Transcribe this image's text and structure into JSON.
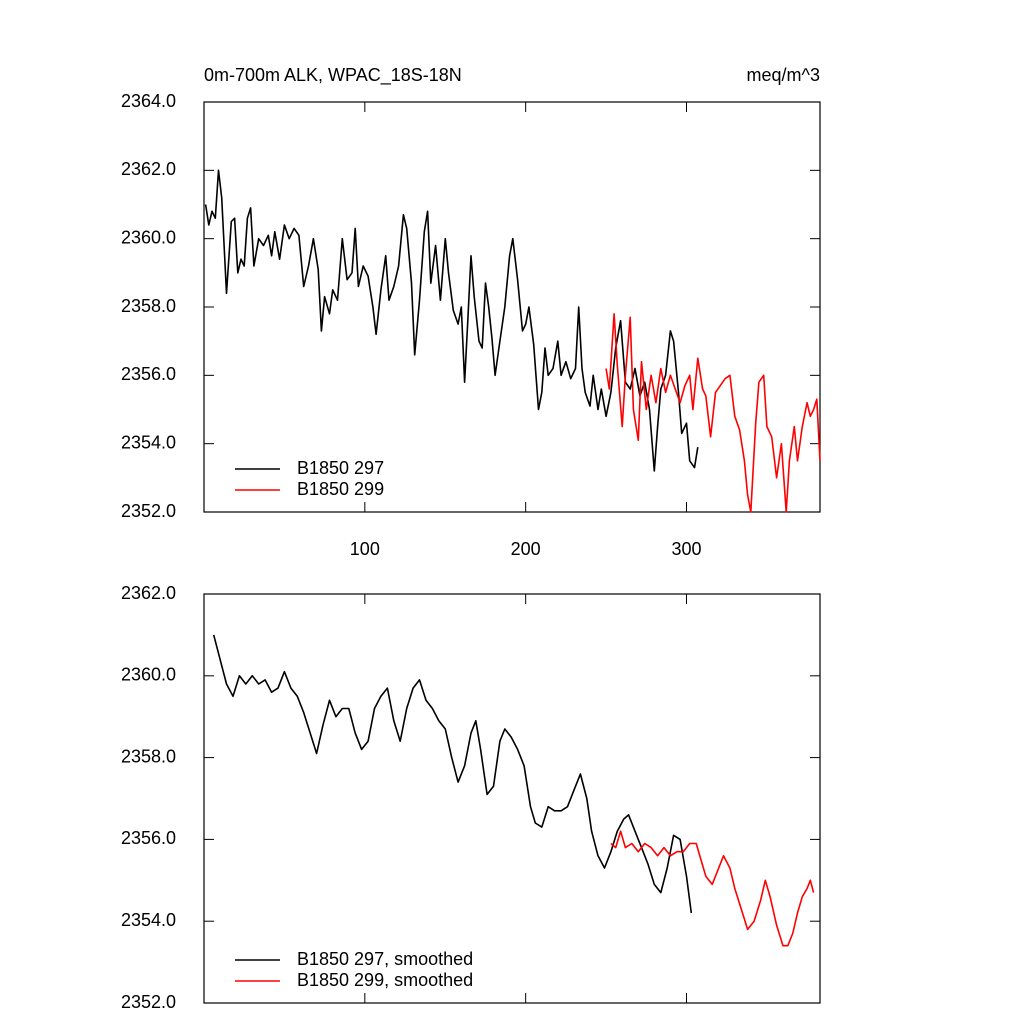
{
  "chart_data": [
    {
      "type": "line",
      "title": "0m-700m ALK, WPAC_18S-18N",
      "units": "meq/m^3",
      "xlim": [
        0,
        383
      ],
      "ylim": [
        2352,
        2364
      ],
      "xticks": [
        100,
        200,
        300
      ],
      "yticks": [
        {
          "value": 2352,
          "label": "2352.0"
        },
        {
          "value": 2354,
          "label": "2354.0"
        },
        {
          "value": 2356,
          "label": "2356.0"
        },
        {
          "value": 2358,
          "label": "2358.0"
        },
        {
          "value": 2360,
          "label": "2360.0"
        },
        {
          "value": 2362,
          "label": "2362.0"
        },
        {
          "value": 2364,
          "label": "2364.0"
        }
      ],
      "legend": "lower left",
      "series": [
        {
          "name": "B1850 297",
          "color": "#000000",
          "x": [
            1,
            3,
            5,
            7,
            9,
            11,
            14,
            17,
            19,
            21,
            23,
            25,
            27,
            29,
            31,
            34,
            37,
            40,
            42,
            44,
            47,
            50,
            53,
            56,
            59,
            62,
            65,
            68,
            71,
            73,
            75,
            78,
            80,
            83,
            86,
            89,
            92,
            94,
            96,
            99,
            102,
            105,
            107,
            110,
            113,
            115,
            118,
            121,
            124,
            126,
            129,
            131,
            134,
            137,
            139,
            141,
            144,
            147,
            150,
            152,
            155,
            158,
            160,
            162,
            164,
            166,
            168,
            171,
            173,
            175,
            177,
            179,
            181,
            184,
            187,
            190,
            192,
            195,
            198,
            200,
            202,
            205,
            208,
            210,
            212,
            214,
            217,
            220,
            222,
            225,
            228,
            231,
            233,
            235,
            237,
            240,
            242,
            245,
            247,
            250,
            253,
            256,
            259,
            262,
            265,
            268,
            271,
            274,
            277,
            280,
            282,
            284,
            287,
            290,
            292,
            295,
            297,
            300,
            302,
            305,
            307
          ],
          "values": [
            2361.0,
            2360.4,
            2360.8,
            2360.6,
            2362.0,
            2361.2,
            2358.4,
            2360.5,
            2360.6,
            2359.0,
            2359.4,
            2359.2,
            2360.6,
            2360.9,
            2359.2,
            2360.0,
            2359.8,
            2360.1,
            2359.5,
            2360.2,
            2359.4,
            2360.4,
            2360.0,
            2360.3,
            2360.1,
            2358.6,
            2359.2,
            2360.0,
            2359.1,
            2357.3,
            2358.3,
            2357.8,
            2358.5,
            2358.2,
            2360.0,
            2358.8,
            2359.0,
            2360.3,
            2358.6,
            2359.2,
            2358.9,
            2358.0,
            2357.2,
            2358.5,
            2359.5,
            2358.2,
            2358.6,
            2359.2,
            2360.7,
            2360.3,
            2358.7,
            2356.6,
            2358.2,
            2360.2,
            2360.8,
            2358.7,
            2359.8,
            2358.2,
            2360.0,
            2359.0,
            2357.9,
            2357.5,
            2358.0,
            2355.8,
            2357.6,
            2359.5,
            2358.3,
            2357.0,
            2356.8,
            2358.7,
            2358.0,
            2357.1,
            2356.0,
            2357.0,
            2358.0,
            2359.5,
            2360.0,
            2358.8,
            2357.3,
            2357.5,
            2358.0,
            2356.9,
            2355.0,
            2355.5,
            2356.8,
            2356.0,
            2356.2,
            2357.0,
            2356.0,
            2356.4,
            2355.9,
            2356.2,
            2358.0,
            2356.2,
            2355.5,
            2355.1,
            2356.0,
            2355.0,
            2355.6,
            2354.8,
            2355.5,
            2356.8,
            2357.6,
            2355.8,
            2355.6,
            2356.2,
            2355.4,
            2355.8,
            2355.0,
            2353.2,
            2354.5,
            2355.6,
            2356.0,
            2357.3,
            2357.0,
            2355.5,
            2354.3,
            2354.6,
            2353.5,
            2353.3,
            2353.9
          ]
        },
        {
          "name": "B1850 299",
          "color": "#ff0000",
          "x": [
            250,
            252,
            255,
            257,
            260,
            262,
            265,
            267,
            270,
            272,
            275,
            278,
            281,
            284,
            287,
            290,
            293,
            296,
            299,
            302,
            304,
            307,
            310,
            312,
            315,
            318,
            321,
            324,
            327,
            330,
            333,
            336,
            338,
            340,
            343,
            345,
            348,
            350,
            353,
            356,
            359,
            362,
            364,
            367,
            369,
            372,
            375,
            377,
            379,
            381,
            383
          ],
          "values": [
            2356.2,
            2355.6,
            2357.8,
            2356.3,
            2354.5,
            2356.0,
            2357.7,
            2355.0,
            2354.1,
            2356.4,
            2355.0,
            2356.0,
            2355.2,
            2356.2,
            2355.5,
            2356.0,
            2355.6,
            2355.2,
            2355.7,
            2356.0,
            2355.0,
            2356.5,
            2355.6,
            2355.4,
            2354.2,
            2355.5,
            2355.7,
            2355.9,
            2356.0,
            2354.8,
            2354.4,
            2353.5,
            2352.5,
            2352.0,
            2354.6,
            2355.8,
            2356.0,
            2354.5,
            2354.2,
            2353.0,
            2354.0,
            2352.0,
            2353.5,
            2354.5,
            2353.5,
            2354.5,
            2355.2,
            2354.8,
            2355.0,
            2355.3,
            2353.5
          ]
        }
      ]
    },
    {
      "type": "line",
      "xlim": [
        0,
        383
      ],
      "ylim": [
        2352,
        2362
      ],
      "xticks": [
        100,
        200,
        300
      ],
      "yticks": [
        {
          "value": 2352,
          "label": "2352.0"
        },
        {
          "value": 2354,
          "label": "2354.0"
        },
        {
          "value": 2356,
          "label": "2356.0"
        },
        {
          "value": 2358,
          "label": "2358.0"
        },
        {
          "value": 2360,
          "label": "2360.0"
        },
        {
          "value": 2362,
          "label": "2362.0"
        }
      ],
      "legend": "lower left",
      "series": [
        {
          "name": "B1850 297, smoothed",
          "color": "#000000",
          "x": [
            6,
            10,
            14,
            18,
            22,
            26,
            30,
            34,
            38,
            42,
            46,
            50,
            54,
            58,
            62,
            66,
            70,
            74,
            78,
            82,
            86,
            90,
            94,
            98,
            102,
            106,
            110,
            114,
            118,
            122,
            126,
            130,
            134,
            138,
            142,
            146,
            150,
            154,
            158,
            162,
            166,
            169,
            172,
            176,
            180,
            184,
            187,
            191,
            195,
            199,
            203,
            206,
            210,
            214,
            218,
            222,
            226,
            230,
            234,
            238,
            241,
            245,
            249,
            253,
            257,
            261,
            264,
            268,
            272,
            276,
            280,
            284,
            288,
            292,
            296,
            300,
            303
          ],
          "values": [
            2361.0,
            2360.4,
            2359.8,
            2359.5,
            2360.0,
            2359.8,
            2360.0,
            2359.8,
            2359.9,
            2359.6,
            2359.7,
            2360.1,
            2359.7,
            2359.5,
            2359.1,
            2358.6,
            2358.1,
            2358.8,
            2359.4,
            2359.0,
            2359.2,
            2359.2,
            2358.6,
            2358.2,
            2358.4,
            2359.2,
            2359.5,
            2359.7,
            2358.9,
            2358.4,
            2359.2,
            2359.7,
            2359.9,
            2359.4,
            2359.2,
            2358.9,
            2358.7,
            2358.0,
            2357.4,
            2357.8,
            2358.6,
            2358.9,
            2358.2,
            2357.1,
            2357.3,
            2358.4,
            2358.7,
            2358.5,
            2358.2,
            2357.8,
            2356.8,
            2356.4,
            2356.3,
            2356.8,
            2356.7,
            2356.7,
            2356.8,
            2357.2,
            2357.6,
            2357.0,
            2356.2,
            2355.6,
            2355.3,
            2355.7,
            2356.2,
            2356.5,
            2356.6,
            2356.2,
            2355.8,
            2355.4,
            2354.9,
            2354.7,
            2355.3,
            2356.1,
            2356.0,
            2355.1,
            2354.2
          ]
        },
        {
          "name": "B1850 299, smoothed",
          "color": "#ff0000",
          "x": [
            253,
            256,
            259,
            262,
            266,
            270,
            274,
            278,
            282,
            286,
            290,
            294,
            298,
            302,
            306,
            309,
            312,
            316,
            320,
            323,
            327,
            330,
            334,
            338,
            342,
            346,
            349,
            352,
            356,
            360,
            363,
            366,
            369,
            372,
            375,
            377,
            379
          ],
          "values": [
            2355.9,
            2355.8,
            2356.2,
            2355.8,
            2355.9,
            2355.7,
            2355.9,
            2355.8,
            2355.6,
            2355.8,
            2355.6,
            2355.7,
            2355.7,
            2355.9,
            2355.9,
            2355.5,
            2355.1,
            2354.9,
            2355.3,
            2355.6,
            2355.3,
            2354.8,
            2354.3,
            2353.8,
            2354.0,
            2354.5,
            2355.0,
            2354.6,
            2353.9,
            2353.4,
            2353.4,
            2353.7,
            2354.2,
            2354.6,
            2354.8,
            2355.0,
            2354.7
          ]
        }
      ]
    }
  ]
}
